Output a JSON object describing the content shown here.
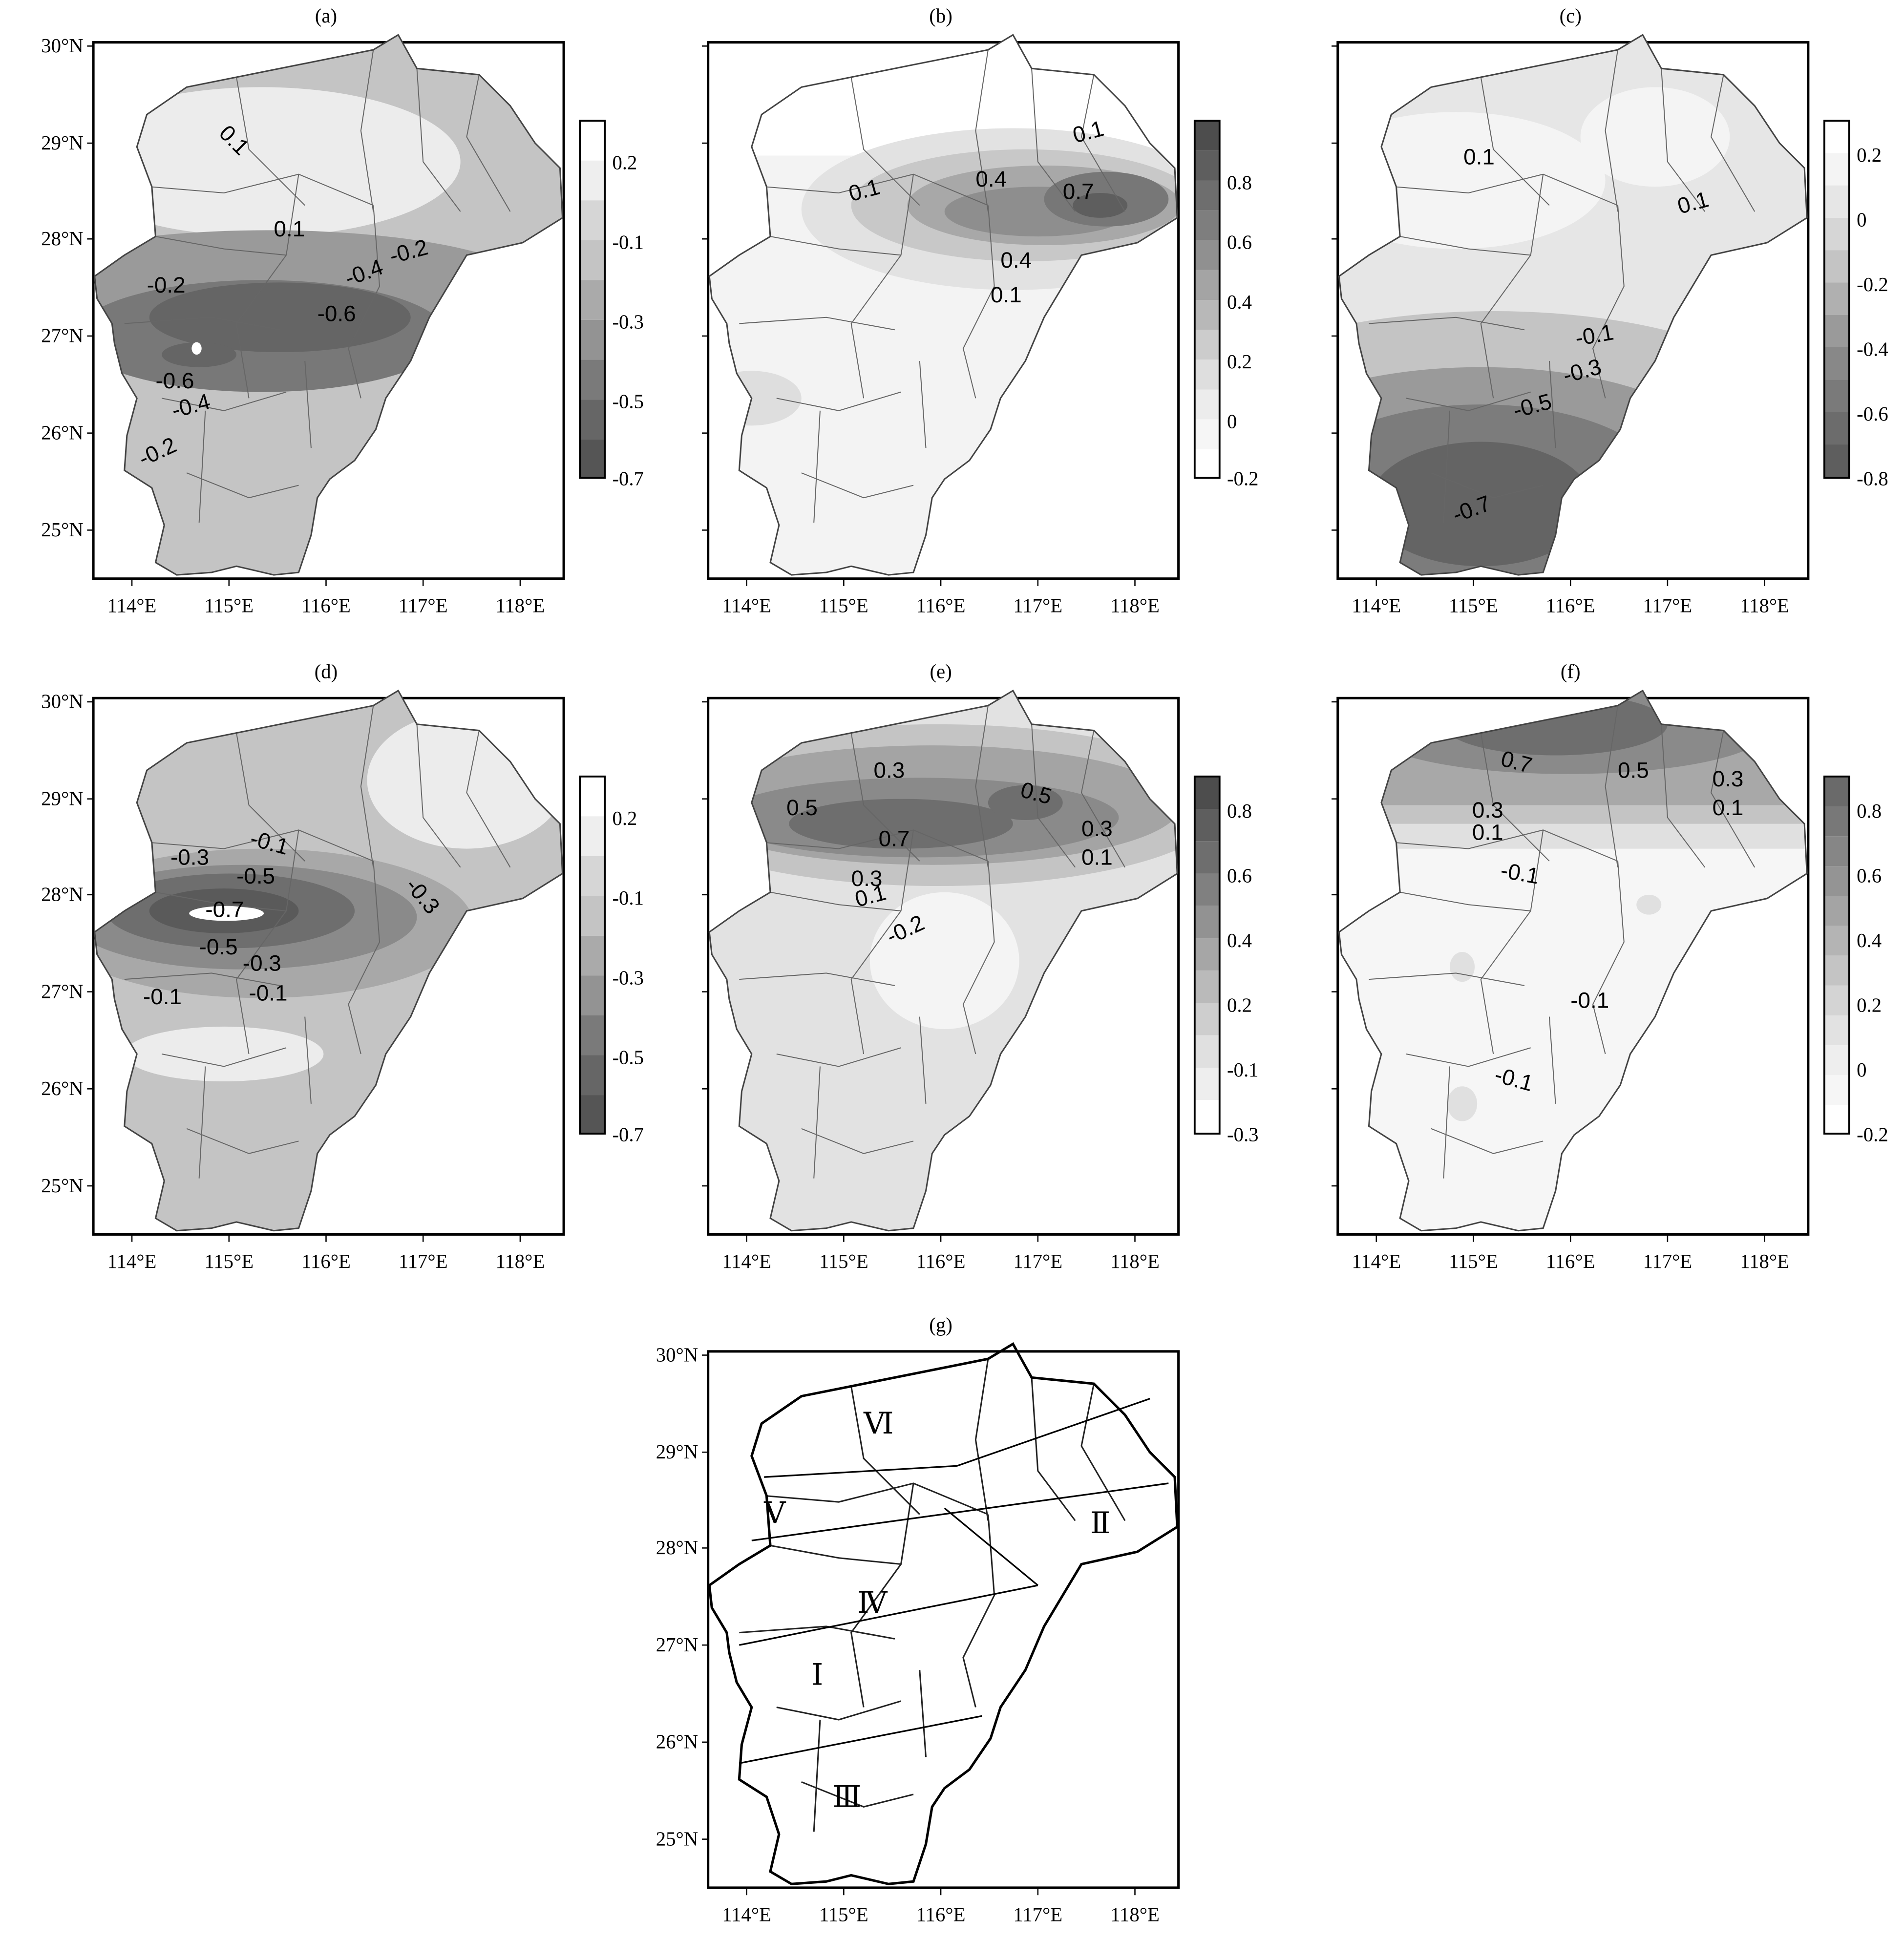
{
  "figure": {
    "panels": [
      {
        "id": "a",
        "title": "(a)",
        "colorbar": [
          "0.2",
          "-0.1",
          "-0.3",
          "-0.5",
          "-0.7"
        ],
        "contour_labels": [
          "0.1",
          "0.1",
          "-0.2",
          "-0.2",
          "-0.4",
          "-0.6",
          "-0.6",
          "-0.4",
          "-0.2"
        ]
      },
      {
        "id": "b",
        "title": "(b)",
        "colorbar": [
          "0.8",
          "0.6",
          "0.4",
          "0.2",
          "0",
          "-0.2"
        ],
        "contour_labels": [
          "0.1",
          "0.1",
          "0.4",
          "0.7",
          "0.4",
          "0.1"
        ]
      },
      {
        "id": "c",
        "title": "(c)",
        "colorbar": [
          "0.2",
          "0",
          "-0.2",
          "-0.4",
          "-0.6",
          "-0.8"
        ],
        "contour_labels": [
          "0.1",
          "0.1",
          "-0.1",
          "-0.3",
          "-0.5",
          "-0.7"
        ]
      },
      {
        "id": "d",
        "title": "(d)",
        "colorbar": [
          "0.2",
          "-0.1",
          "-0.3",
          "-0.5",
          "-0.7"
        ],
        "contour_labels": [
          "-0.1",
          "-0.3",
          "-0.5",
          "-0.7",
          "-0.3",
          "-0.5",
          "-0.3",
          "-0.1",
          "-0.1"
        ]
      },
      {
        "id": "e",
        "title": "(e)",
        "colorbar": [
          "0.8",
          "0.6",
          "0.4",
          "0.2",
          "-0.1",
          "-0.3"
        ],
        "contour_labels": [
          "0.3",
          "0.5",
          "0.5",
          "0.7",
          "0.3",
          "0.1",
          "0.3",
          "0.1",
          "-0.2"
        ]
      },
      {
        "id": "f",
        "title": "(f)",
        "colorbar": [
          "0.8",
          "0.6",
          "0.4",
          "0.2",
          "0",
          "-0.2"
        ],
        "contour_labels": [
          "0.7",
          "0.5",
          "0.3",
          "0.1",
          "0.3",
          "0.1",
          "-0.1",
          "-0.1",
          "-0.1"
        ]
      },
      {
        "id": "g",
        "title": "(g)",
        "regions": [
          "Ⅵ",
          "Ⅴ",
          "Ⅱ",
          "Ⅳ",
          "Ⅰ",
          "Ⅲ"
        ]
      }
    ],
    "lat_labels": [
      "30°N",
      "29°N",
      "28°N",
      "27°N",
      "26°N",
      "25°N"
    ],
    "lon_labels": [
      "114°E",
      "115°E",
      "116°E",
      "117°E",
      "118°E"
    ]
  },
  "colors": {
    "ink": "#000000",
    "fill_light": "#eeeeee",
    "fill_mid": "#bdbdbd",
    "fill_dark": "#6a6a6a"
  }
}
